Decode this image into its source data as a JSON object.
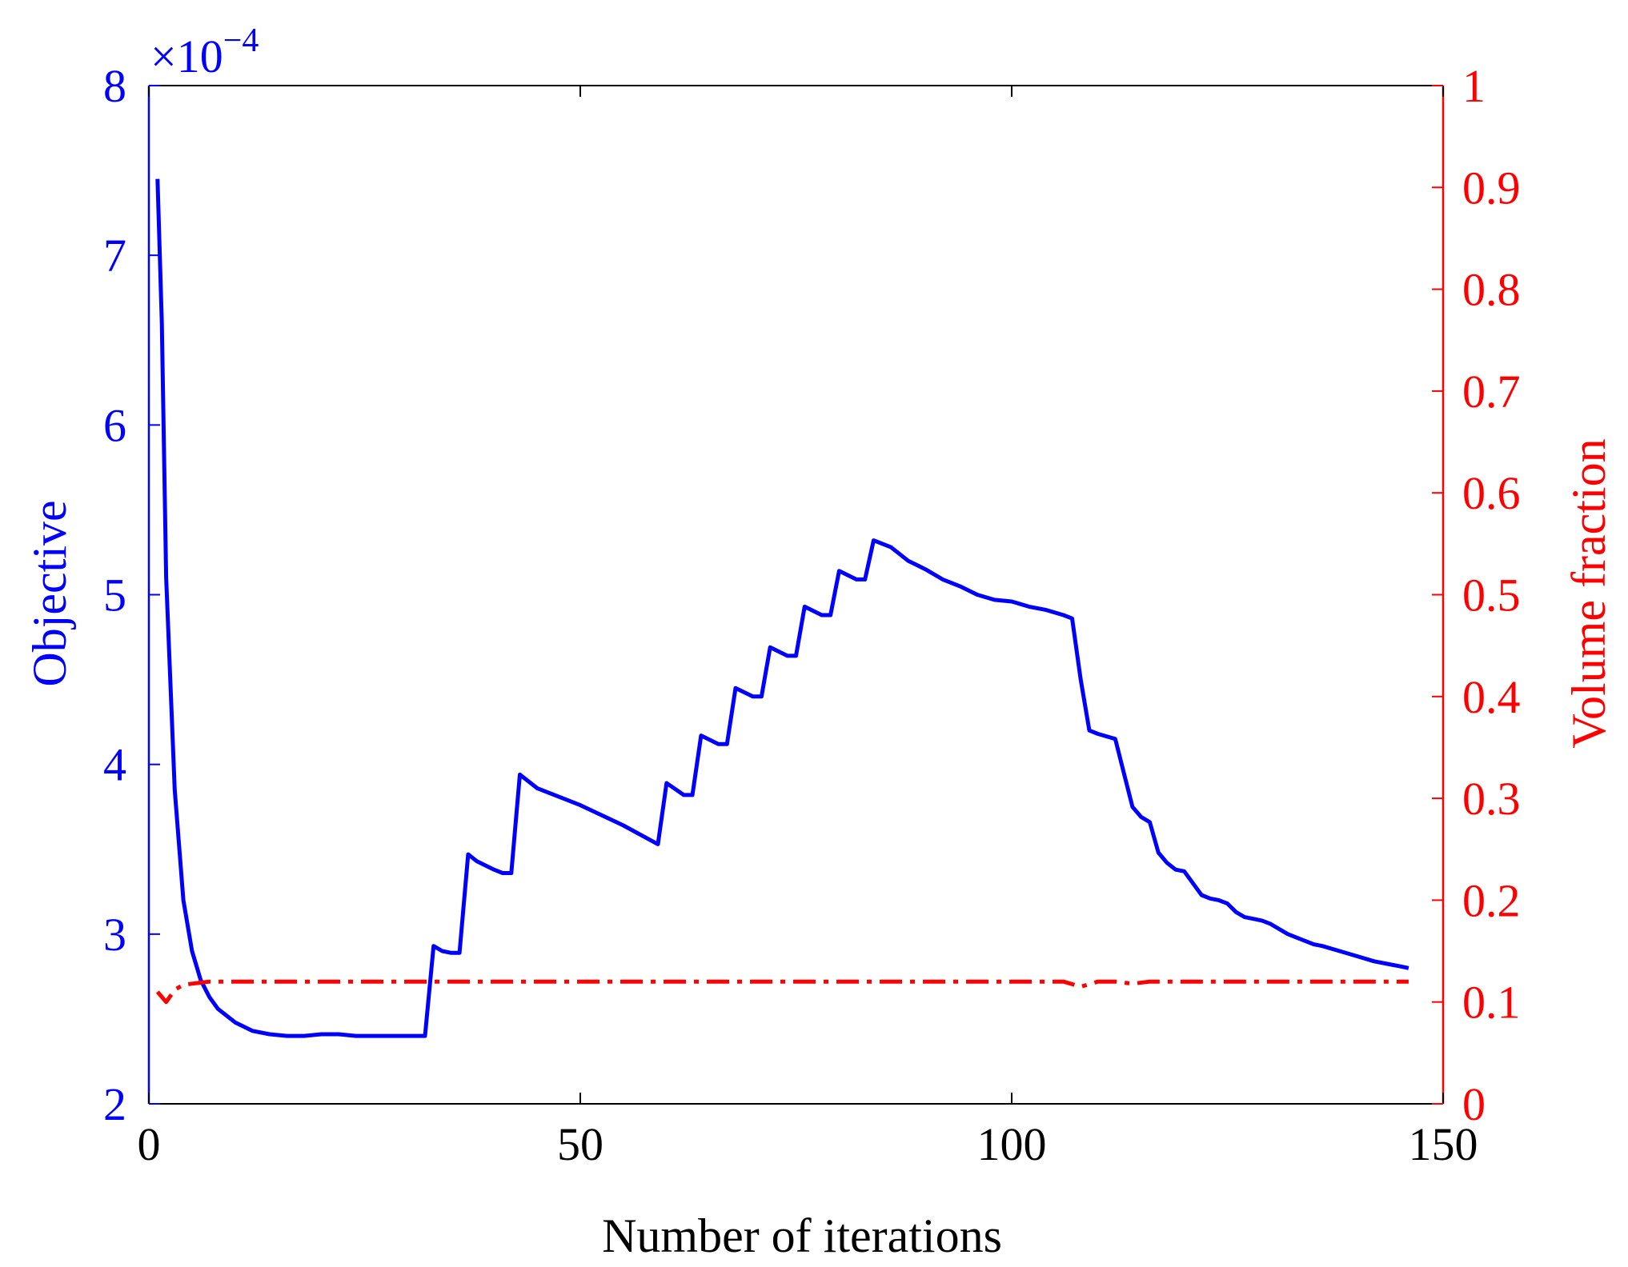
{
  "chart_data": {
    "type": "line",
    "title": "",
    "xlabel": "Number of iterations",
    "ylabel_left": "Objective",
    "ylabel_right": "Volume fraction",
    "xlim": [
      0,
      150
    ],
    "ylim_left": [
      2,
      8
    ],
    "ylim_right": [
      0,
      1
    ],
    "y_left_multiplier": "×10",
    "y_left_exponent": "−4",
    "x_ticks": [
      "0",
      "50",
      "100",
      "150"
    ],
    "y_left_ticks": [
      "2",
      "3",
      "4",
      "5",
      "6",
      "7",
      "8"
    ],
    "y_right_ticks": [
      "0",
      "0.1",
      "0.2",
      "0.3",
      "0.4",
      "0.5",
      "0.6",
      "0.7",
      "0.8",
      "0.9",
      "1"
    ],
    "grid": false,
    "colors": {
      "objective": "#0000ff",
      "volume": "#ff0000",
      "axes": "#000000"
    },
    "series": [
      {
        "key": "objective",
        "axis": "left",
        "style": "solid",
        "x": [
          1,
          1.5,
          2,
          3,
          4,
          5,
          6,
          7,
          8,
          10,
          12,
          14,
          16,
          18,
          20,
          22,
          24,
          26,
          28,
          30,
          31,
          32,
          33,
          34,
          35,
          36,
          37,
          38,
          40,
          41,
          42,
          43,
          45,
          50,
          55,
          59,
          60,
          62,
          63,
          64,
          66,
          67,
          68,
          70,
          71,
          72,
          74,
          75,
          76,
          78,
          79,
          80,
          82,
          83,
          84,
          86,
          88,
          90,
          92,
          94,
          96,
          98,
          100,
          102,
          104,
          106,
          107,
          108,
          109,
          110,
          112,
          113,
          114,
          115,
          116,
          117,
          118,
          119,
          120,
          121,
          122,
          123,
          124,
          125,
          126,
          127,
          128,
          129,
          130,
          131,
          132,
          133,
          134,
          135,
          136,
          138,
          140,
          142,
          144,
          145,
          146
        ],
        "values": [
          7.45,
          6.6,
          5.1,
          3.85,
          3.2,
          2.9,
          2.73,
          2.63,
          2.56,
          2.48,
          2.43,
          2.41,
          2.4,
          2.4,
          2.41,
          2.41,
          2.4,
          2.4,
          2.4,
          2.4,
          2.4,
          2.4,
          2.93,
          2.9,
          2.89,
          2.89,
          3.47,
          3.43,
          3.38,
          3.36,
          3.36,
          3.94,
          3.86,
          3.76,
          3.64,
          3.53,
          3.89,
          3.82,
          3.82,
          4.17,
          4.12,
          4.12,
          4.45,
          4.4,
          4.4,
          4.69,
          4.64,
          4.64,
          4.93,
          4.88,
          4.88,
          5.14,
          5.09,
          5.09,
          5.32,
          5.28,
          5.2,
          5.15,
          5.09,
          5.05,
          5.0,
          4.97,
          4.96,
          4.93,
          4.91,
          4.88,
          4.86,
          4.5,
          4.2,
          4.18,
          4.15,
          3.95,
          3.75,
          3.69,
          3.66,
          3.48,
          3.42,
          3.38,
          3.37,
          3.3,
          3.23,
          3.21,
          3.2,
          3.18,
          3.13,
          3.1,
          3.09,
          3.08,
          3.06,
          3.03,
          3.0,
          2.98,
          2.96,
          2.94,
          2.93,
          2.9,
          2.87,
          2.84,
          2.82,
          2.81,
          2.8
        ]
      },
      {
        "key": "volume",
        "axis": "right",
        "style": "dash-dot",
        "x": [
          1,
          2,
          3,
          4,
          5,
          6,
          7,
          8,
          10,
          20,
          40,
          60,
          80,
          100,
          106,
          108,
          110,
          112,
          114,
          116,
          120,
          130,
          140,
          146
        ],
        "values": [
          0.11,
          0.1,
          0.112,
          0.117,
          0.118,
          0.119,
          0.12,
          0.12,
          0.12,
          0.12,
          0.12,
          0.12,
          0.12,
          0.12,
          0.12,
          0.115,
          0.12,
          0.12,
          0.118,
          0.12,
          0.12,
          0.12,
          0.12,
          0.12
        ]
      }
    ]
  }
}
